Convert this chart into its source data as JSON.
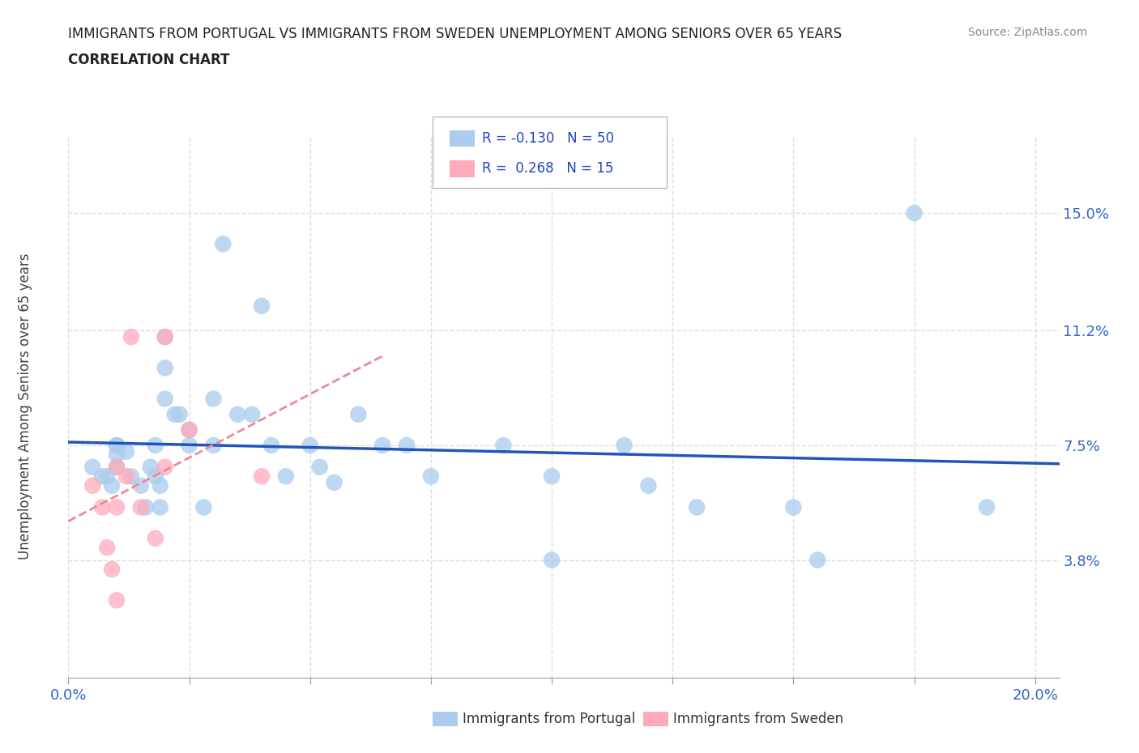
{
  "title_line1": "IMMIGRANTS FROM PORTUGAL VS IMMIGRANTS FROM SWEDEN UNEMPLOYMENT AMONG SENIORS OVER 65 YEARS",
  "title_line2": "CORRELATION CHART",
  "source": "Source: ZipAtlas.com",
  "ylabel": "Unemployment Among Seniors over 65 years",
  "xlim": [
    0.0,
    0.205
  ],
  "ylim": [
    0.0,
    0.175
  ],
  "yticks": [
    0.038,
    0.075,
    0.112,
    0.15
  ],
  "ytick_labels": [
    "3.8%",
    "7.5%",
    "11.2%",
    "15.0%"
  ],
  "xticks": [
    0.0,
    0.025,
    0.05,
    0.075,
    0.1,
    0.125,
    0.15,
    0.175,
    0.2
  ],
  "xtick_labels": [
    "0.0%",
    "",
    "",
    "",
    "",
    "",
    "",
    "",
    "20.0%"
  ],
  "background_color": "#ffffff",
  "grid_color": "#dddddd",
  "portugal_color": "#aaccee",
  "sweden_color": "#ffaabb",
  "portugal_line_color": "#2255bb",
  "sweden_line_color": "#ee8899",
  "tick_label_color": "#3366cc",
  "legend_R_portugal": "-0.130",
  "legend_N_portugal": "50",
  "legend_R_sweden": "0.268",
  "legend_N_sweden": "15",
  "portugal_scatter_x": [
    0.005,
    0.007,
    0.008,
    0.009,
    0.01,
    0.01,
    0.01,
    0.01,
    0.012,
    0.013,
    0.015,
    0.016,
    0.017,
    0.018,
    0.018,
    0.019,
    0.019,
    0.02,
    0.02,
    0.02,
    0.022,
    0.023,
    0.025,
    0.025,
    0.028,
    0.03,
    0.03,
    0.032,
    0.035,
    0.038,
    0.04,
    0.042,
    0.045,
    0.05,
    0.052,
    0.055,
    0.06,
    0.065,
    0.07,
    0.075,
    0.09,
    0.1,
    0.1,
    0.115,
    0.12,
    0.13,
    0.15,
    0.155,
    0.175,
    0.19
  ],
  "portugal_scatter_y": [
    0.068,
    0.065,
    0.065,
    0.062,
    0.075,
    0.075,
    0.072,
    0.068,
    0.073,
    0.065,
    0.062,
    0.055,
    0.068,
    0.065,
    0.075,
    0.062,
    0.055,
    0.11,
    0.1,
    0.09,
    0.085,
    0.085,
    0.08,
    0.075,
    0.055,
    0.09,
    0.075,
    0.14,
    0.085,
    0.085,
    0.12,
    0.075,
    0.065,
    0.075,
    0.068,
    0.063,
    0.085,
    0.075,
    0.075,
    0.065,
    0.075,
    0.065,
    0.038,
    0.075,
    0.062,
    0.055,
    0.055,
    0.038,
    0.15,
    0.055
  ],
  "sweden_scatter_x": [
    0.005,
    0.007,
    0.008,
    0.009,
    0.01,
    0.01,
    0.01,
    0.012,
    0.013,
    0.015,
    0.018,
    0.02,
    0.02,
    0.025,
    0.04
  ],
  "sweden_scatter_y": [
    0.062,
    0.055,
    0.042,
    0.035,
    0.068,
    0.055,
    0.025,
    0.065,
    0.11,
    0.055,
    0.045,
    0.11,
    0.068,
    0.08,
    0.065
  ]
}
